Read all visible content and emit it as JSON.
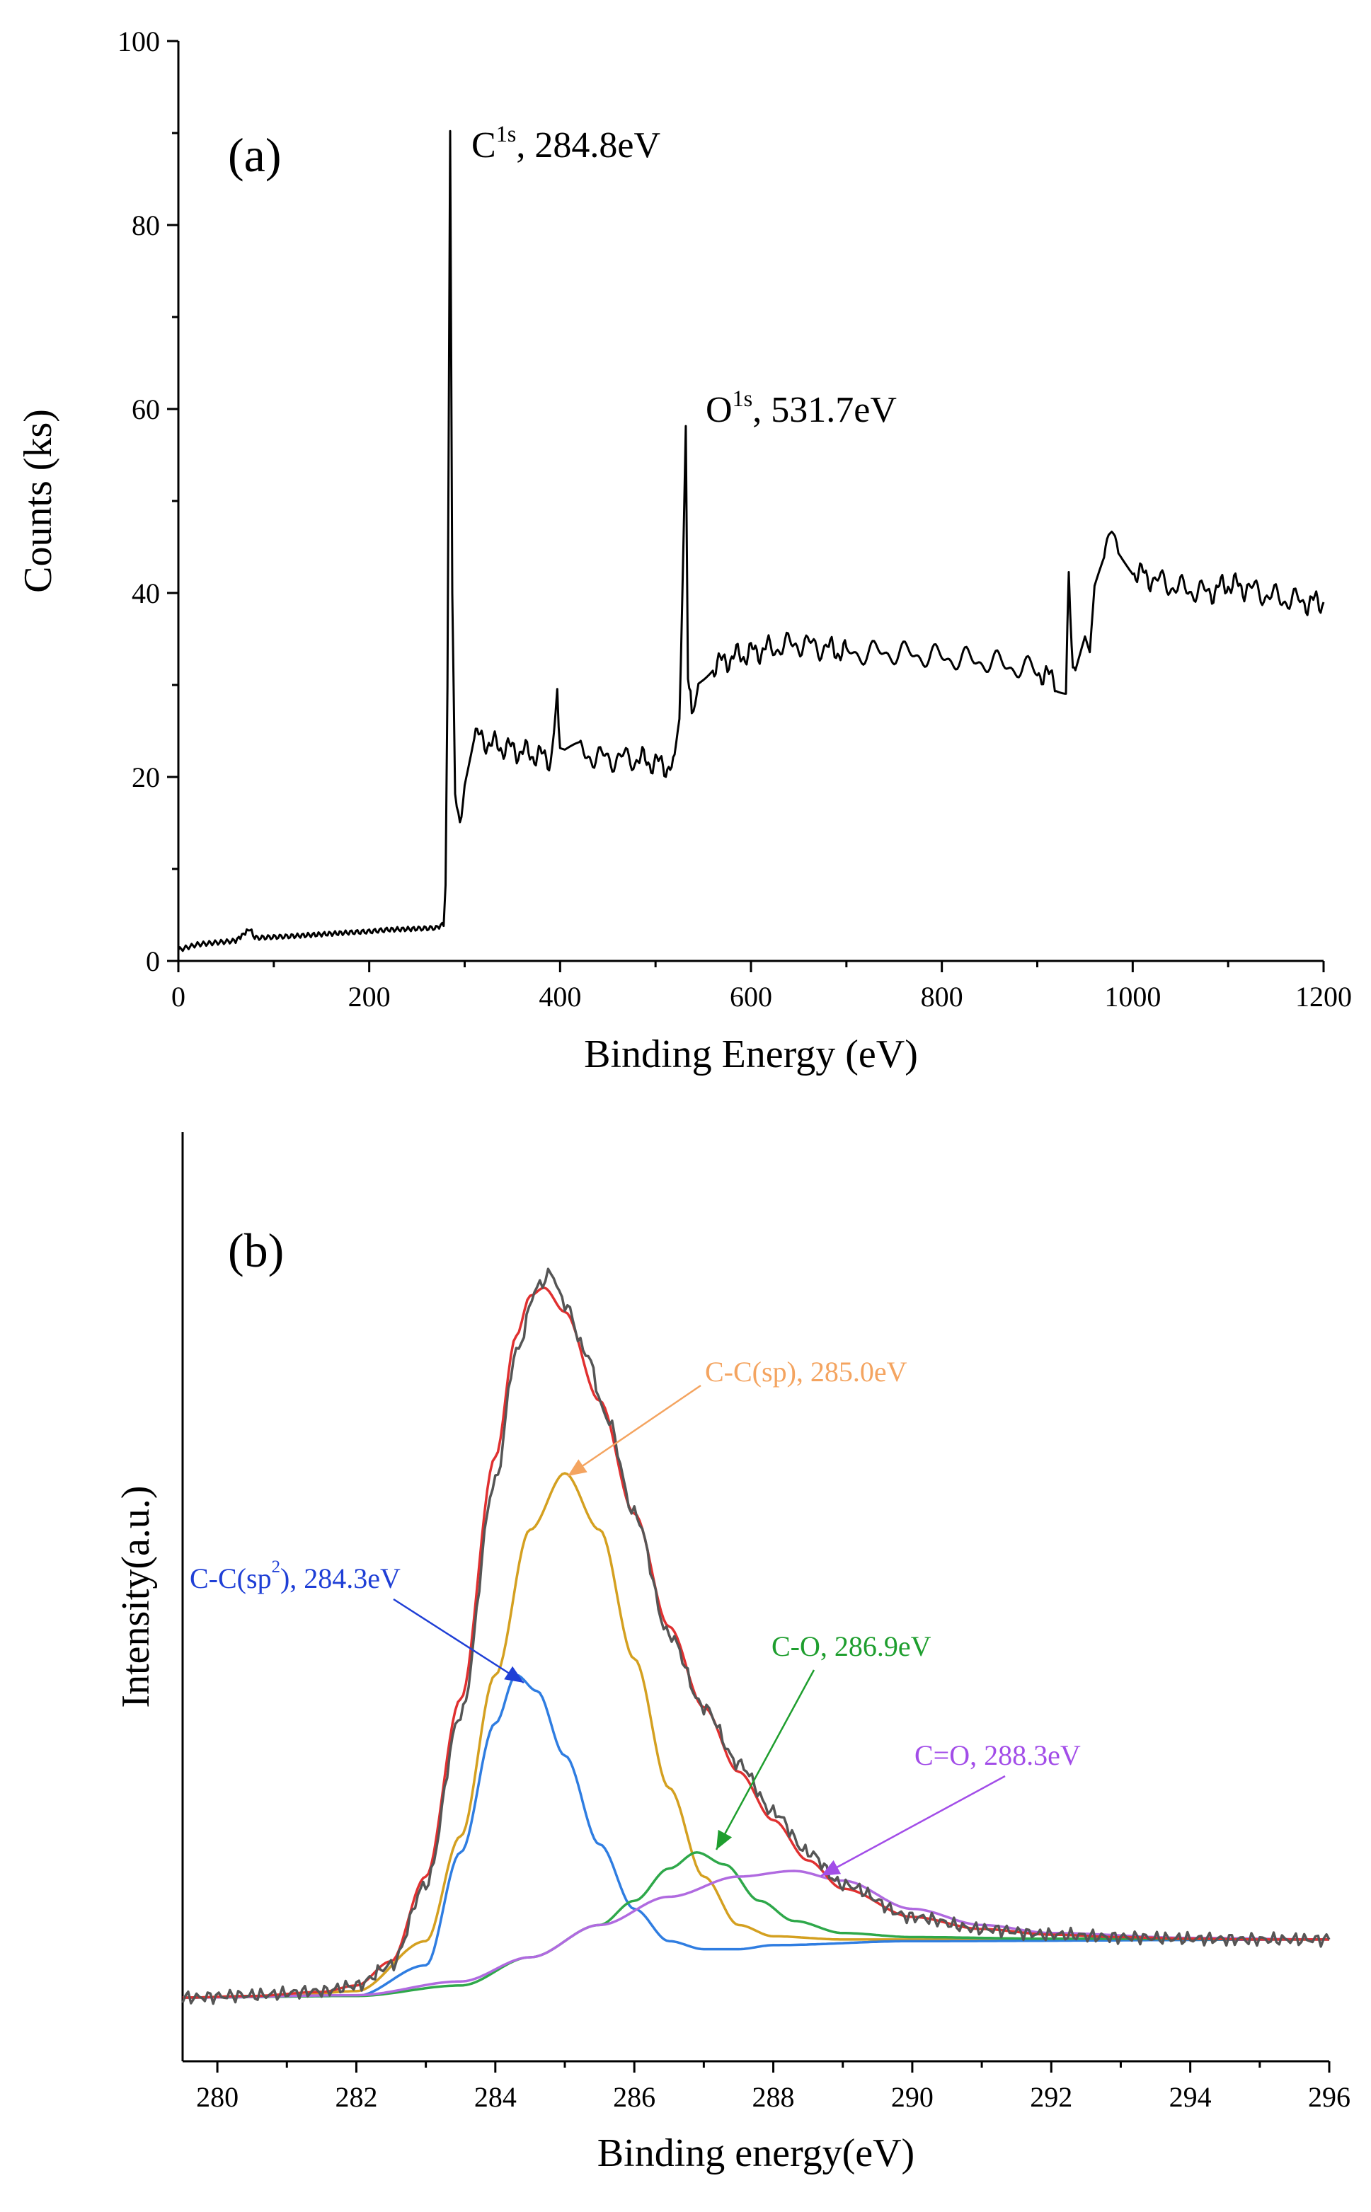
{
  "chart_data": [
    {
      "type": "line",
      "panel_label": "(a)",
      "xlabel": "Binding Energy (eV)",
      "ylabel": "Counts (ks)",
      "xlim": [
        0,
        1200
      ],
      "ylim": [
        0,
        100
      ],
      "x_ticks": [
        "0",
        "200",
        "400",
        "600",
        "800",
        "1000",
        "1200"
      ],
      "y_ticks": [
        "0",
        "20",
        "40",
        "60",
        "80",
        "100"
      ],
      "grid": false,
      "line_color": "#000000",
      "annotations": [
        {
          "base": "C",
          "sup": "1s",
          "rest": ", 284.8eV",
          "x": 284.8,
          "y": 90
        },
        {
          "base": "O",
          "sup": "1s",
          "rest": ", 531.7eV",
          "x": 531.7,
          "y": 57
        }
      ],
      "series": [
        {
          "x": [
            0,
            20,
            40,
            60,
            75,
            80,
            100,
            120,
            150,
            180,
            200,
            220,
            250,
            270,
            278,
            280,
            282,
            284.8,
            287,
            290,
            295,
            300,
            310,
            330,
            350,
            370,
            390,
            397,
            400,
            405,
            420,
            450,
            480,
            500,
            520,
            525,
            528,
            531.7,
            534,
            538,
            545,
            560,
            580,
            600,
            620,
            650,
            680,
            700,
            750,
            800,
            850,
            900,
            920,
            930,
            933,
            936,
            940,
            950,
            955,
            960,
            970,
            978,
            985,
            1000,
            1020,
            1050,
            1080,
            1100,
            1120,
            1150,
            1180,
            1200
          ],
          "y": [
            1.2,
            1.8,
            2.0,
            2.2,
            3.5,
            2.5,
            2.6,
            2.7,
            2.9,
            3.1,
            3.2,
            3.4,
            3.5,
            3.6,
            4.0,
            8.0,
            30.0,
            90.0,
            40.0,
            18.0,
            15.0,
            20.0,
            24.5,
            23.5,
            23.0,
            22.5,
            22.0,
            30.5,
            23.0,
            22.5,
            22.5,
            22.0,
            22.0,
            21.5,
            21.0,
            25.0,
            40.0,
            57.0,
            30.0,
            28.0,
            30.0,
            32.0,
            33.0,
            33.5,
            34.0,
            34.5,
            34.0,
            33.5,
            33.5,
            33.0,
            32.5,
            31.5,
            30.5,
            30.0,
            42.0,
            33.0,
            32.0,
            35.0,
            33.0,
            40.0,
            43.0,
            47.5,
            44.0,
            42.5,
            41.5,
            40.5,
            40.0,
            41.0,
            40.5,
            39.5,
            39.0,
            39.0
          ]
        }
      ]
    },
    {
      "type": "line",
      "panel_label": "(b)",
      "xlabel": "Binding energy(eV)",
      "ylabel": "Intensity(a.u.)",
      "xlim": [
        279.5,
        296
      ],
      "ylim": [
        0,
        100
      ],
      "x_ticks": [
        "280",
        "282",
        "284",
        "286",
        "288",
        "290",
        "292",
        "294",
        "296"
      ],
      "y_ticks": [],
      "grid": false,
      "annotations": [
        {
          "text": "C-C(sp), 285.0eV",
          "color": "#f4a460",
          "series": "C-C(sp)"
        },
        {
          "base": "C-C(sp",
          "sup": "2",
          "rest": "), 284.3eV",
          "color": "#1f3fd6",
          "series": "C-C(sp2)"
        },
        {
          "text": "C-O, 286.9eV",
          "color": "#1e9e2e",
          "series": "C-O"
        },
        {
          "text": "C=O, 288.3eV",
          "color": "#a24de8",
          "series": "C=O"
        }
      ],
      "series": [
        {
          "role": "experimental",
          "color": "#555555",
          "x": [
            279.5,
            280.5,
            281.5,
            282.0,
            282.5,
            283.0,
            283.5,
            284.0,
            284.3,
            284.6,
            284.8,
            285.0,
            285.3,
            285.6,
            286.0,
            286.5,
            287.0,
            287.5,
            288.0,
            288.5,
            289.0,
            290.0,
            291.0,
            292.0,
            293.0,
            294.0,
            295.0,
            296.0
          ],
          "y": [
            0.0,
            0.3,
            0.8,
            1.5,
            4.0,
            14.0,
            35.0,
            64.0,
            80.0,
            88.0,
            89.8,
            86.0,
            80.0,
            72.0,
            60.0,
            45.0,
            36.0,
            29.0,
            23.0,
            18.0,
            14.0,
            10.0,
            8.5,
            7.8,
            7.5,
            7.3,
            7.2,
            7.2
          ]
        },
        {
          "role": "envelope",
          "color": "#e03030",
          "x": [
            279.5,
            280.5,
            281.5,
            282.0,
            282.5,
            283.0,
            283.5,
            284.0,
            284.3,
            284.5,
            284.7,
            285.0,
            285.5,
            286.0,
            286.5,
            287.0,
            287.5,
            288.0,
            288.5,
            289.0,
            290.0,
            291.0,
            292.0,
            293.0,
            294.0,
            295.0,
            296.0
          ],
          "y": [
            0.0,
            0.2,
            0.7,
            1.5,
            4.5,
            15.0,
            37.0,
            67.0,
            82.0,
            87.0,
            88.0,
            85.0,
            74.0,
            60.0,
            46.0,
            36.0,
            28.0,
            22.0,
            17.0,
            13.5,
            10.0,
            8.5,
            7.8,
            7.5,
            7.3,
            7.2,
            7.2
          ]
        },
        {
          "name": "C-C(sp)",
          "color": "#d4a020",
          "x": [
            279.5,
            281.0,
            282.0,
            283.0,
            283.5,
            284.0,
            284.5,
            285.0,
            285.5,
            286.0,
            286.5,
            287.0,
            287.5,
            288.0,
            289.0,
            290.0,
            292.0,
            296.0
          ],
          "y": [
            0.0,
            0.2,
            0.8,
            7.0,
            20.0,
            40.0,
            58.0,
            65.0,
            58.0,
            42.0,
            26.0,
            15.0,
            9.0,
            7.6,
            7.2,
            7.2,
            7.2,
            7.2
          ]
        },
        {
          "name": "C-C(sp2)",
          "color": "#2f7de1",
          "x": [
            279.5,
            282.0,
            283.0,
            283.5,
            284.0,
            284.3,
            284.6,
            285.0,
            285.5,
            286.0,
            286.5,
            287.0,
            287.5,
            288.0,
            290.0,
            296.0
          ],
          "y": [
            0.0,
            0.2,
            4.0,
            18.0,
            34.0,
            40.0,
            38.0,
            30.0,
            19.0,
            11.0,
            7.0,
            6.0,
            6.0,
            6.5,
            7.0,
            7.2
          ]
        },
        {
          "name": "C-O",
          "color": "#2ea84a",
          "x": [
            279.5,
            282.0,
            283.5,
            284.5,
            285.5,
            286.0,
            286.5,
            286.9,
            287.3,
            287.8,
            288.3,
            289.0,
            290.0,
            292.0,
            296.0
          ],
          "y": [
            0.0,
            0.2,
            1.5,
            5.0,
            9.0,
            12.0,
            16.0,
            18.0,
            16.5,
            12.0,
            9.5,
            8.0,
            7.5,
            7.3,
            7.2
          ]
        },
        {
          "name": "C=O",
          "color": "#b06ae0",
          "x": [
            279.5,
            282.0,
            283.5,
            284.5,
            285.5,
            286.5,
            287.5,
            288.3,
            289.0,
            290.0,
            291.0,
            292.0,
            294.0,
            296.0
          ],
          "y": [
            0.0,
            0.3,
            2.0,
            5.0,
            9.0,
            12.5,
            15.0,
            15.7,
            14.5,
            11.0,
            9.0,
            8.0,
            7.4,
            7.2
          ]
        }
      ]
    }
  ]
}
